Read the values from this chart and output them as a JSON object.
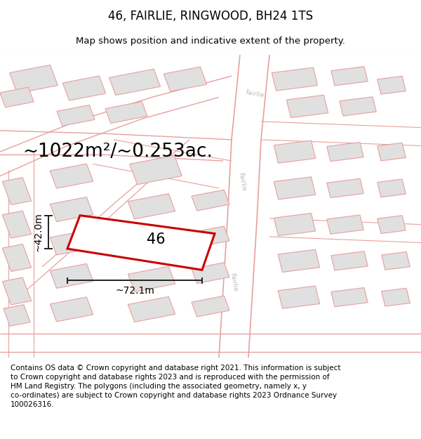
{
  "title": "46, FAIRLIE, RINGWOOD, BH24 1TS",
  "subtitle": "Map shows position and indicative extent of the property.",
  "footer": "Contains OS data © Crown copyright and database right 2021. This information is subject\nto Crown copyright and database rights 2023 and is reproduced with the permission of\nHM Land Registry. The polygons (including the associated geometry, namely x, y\nco-ordinates) are subject to Crown copyright and database rights 2023 Ordnance Survey\n100026316.",
  "area_label": "~1022m²/~0.253ac.",
  "width_label": "~72.1m",
  "height_label": "~42.0m",
  "number_label": "46",
  "map_bg": "#f7f7f7",
  "building_fill": "#e0e0e0",
  "building_edge": "#e8a0a0",
  "road_color": "#e8a0a0",
  "highlight_fill": "#ffffff",
  "highlight_edge": "#cc0000",
  "highlight_lw": 2.2,
  "dim_line_color": "#222222",
  "title_fontsize": 12,
  "subtitle_fontsize": 9.5,
  "footer_fontsize": 7.5,
  "area_fontsize": 19,
  "dim_fontsize": 10,
  "number_fontsize": 15,
  "road_label_color": "#bbbbbb",
  "road_lw": 1.0,
  "building_lw": 0.8
}
